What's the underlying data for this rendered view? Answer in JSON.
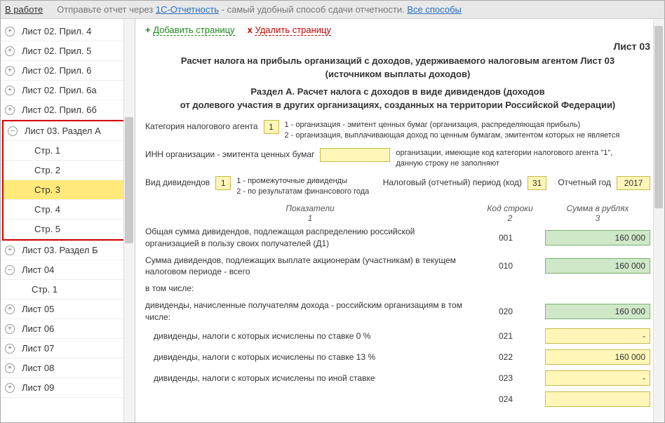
{
  "topbar": {
    "status": "В работе",
    "hint_prefix": "Отправьте отчет через ",
    "hint_link1": "1С-Отчетность",
    "hint_mid": " - самый удобный способ сдачи отчетности. ",
    "hint_link2": "Все способы"
  },
  "actions": {
    "add": "Добавить страницу",
    "del": "Удалить страницу",
    "plus": "+",
    "x": "x"
  },
  "page": {
    "short_title": "Лист 03",
    "title_line1": "Расчет налога на прибыль организаций с доходов, удерживаемого налоговым агентом Лист 03",
    "title_line2": "(источником выплаты доходов)",
    "subtitle_line1": "Раздел А. Расчет налога с доходов в виде дивидендов (доходов",
    "subtitle_line2": "от долевого участия в других организациях, созданных на территории Российской Федерации)"
  },
  "form": {
    "agent_category_label": "Категория налогового агента",
    "agent_category_value": "1",
    "agent_category_note1": "1 - организация - эмитент ценных бумаг (организация, распределяющая прибыль)",
    "agent_category_note2": "2 - организация, выплачивающая доход по ценным бумагам, эмитентом которых не является",
    "inn_label": "ИНН организации - эмитента ценных бумаг",
    "inn_value": "",
    "inn_note": "организации, имеющие код категории налогового агента \"1\", данную строку не заполняют",
    "div_kind_label": "Вид дивидендов",
    "div_kind_value": "1",
    "div_kind_note1": "1 - промежуточные дивиденды",
    "div_kind_note2": "2 - по результатам финансового года",
    "period_label": "Налоговый (отчетный) период (код)",
    "period_value": "31",
    "year_label": "Отчетный год",
    "year_value": "2017"
  },
  "columns": {
    "c1": "Показатели",
    "c1n": "1",
    "c2": "Код строки",
    "c2n": "2",
    "c3": "Сумма в рублях",
    "c3n": "3"
  },
  "rows": [
    {
      "desc": "Общая сумма дивидендов, подлежащая распределению российской организацией в пользу своих получателей (Д1)",
      "code": "001",
      "amount": "160 000",
      "style": "green",
      "indent": false
    },
    {
      "desc": "Сумма дивидендов, подлежащих выплате акционерам (участникам) в текущем налоговом периоде - всего",
      "code": "010",
      "amount": "160 000",
      "style": "green",
      "indent": false
    },
    {
      "desc": "в том числе:",
      "code": "",
      "amount": "",
      "style": "",
      "indent": false
    },
    {
      "desc": "дивиденды, начисленные получателям дохода - российским организациям в том числе:",
      "code": "020",
      "amount": "160 000",
      "style": "green",
      "indent": false
    },
    {
      "desc": "дивиденды, налоги с которых исчислены по ставке 0 %",
      "code": "021",
      "amount": "-",
      "style": "yellow",
      "indent": true
    },
    {
      "desc": "дивиденды, налоги с которых исчислены по ставке 13 %",
      "code": "022",
      "amount": "160 000",
      "style": "yellow",
      "indent": true
    },
    {
      "desc": "дивиденды, налоги с которых исчислены по иной ставке",
      "code": "023",
      "amount": "-",
      "style": "yellow",
      "indent": true
    },
    {
      "desc": " ",
      "code": "024",
      "amount": "",
      "style": "yellow",
      "indent": true
    }
  ],
  "tree": {
    "top": [
      {
        "label": "Лист 02. Прил. 4",
        "exp": "+"
      },
      {
        "label": "Лист 02. Прил. 5",
        "exp": "+"
      },
      {
        "label": "Лист 02. Прил. 6",
        "exp": "+"
      },
      {
        "label": "Лист 02. Прил. 6а",
        "exp": "+"
      },
      {
        "label": "Лист 02. Прил. 6б",
        "exp": "+"
      }
    ],
    "section_a": {
      "label": "Лист 03. Раздел А",
      "exp": "–"
    },
    "pages": [
      {
        "label": "Стр. 1"
      },
      {
        "label": "Стр. 2"
      },
      {
        "label": "Стр. 3",
        "selected": true
      },
      {
        "label": "Стр. 4"
      },
      {
        "label": "Стр. 5"
      }
    ],
    "bottom": [
      {
        "label": "Лист 03. Раздел Б",
        "exp": "+"
      },
      {
        "label": "Лист 04",
        "exp": "–"
      },
      {
        "label": "Стр. 1",
        "level": 2
      },
      {
        "label": "Лист 05",
        "exp": "+"
      },
      {
        "label": "Лист 06",
        "exp": "+"
      },
      {
        "label": "Лист 07",
        "exp": "+"
      },
      {
        "label": "Лист 08",
        "exp": "+"
      },
      {
        "label": "Лист 09",
        "exp": "+"
      }
    ]
  }
}
